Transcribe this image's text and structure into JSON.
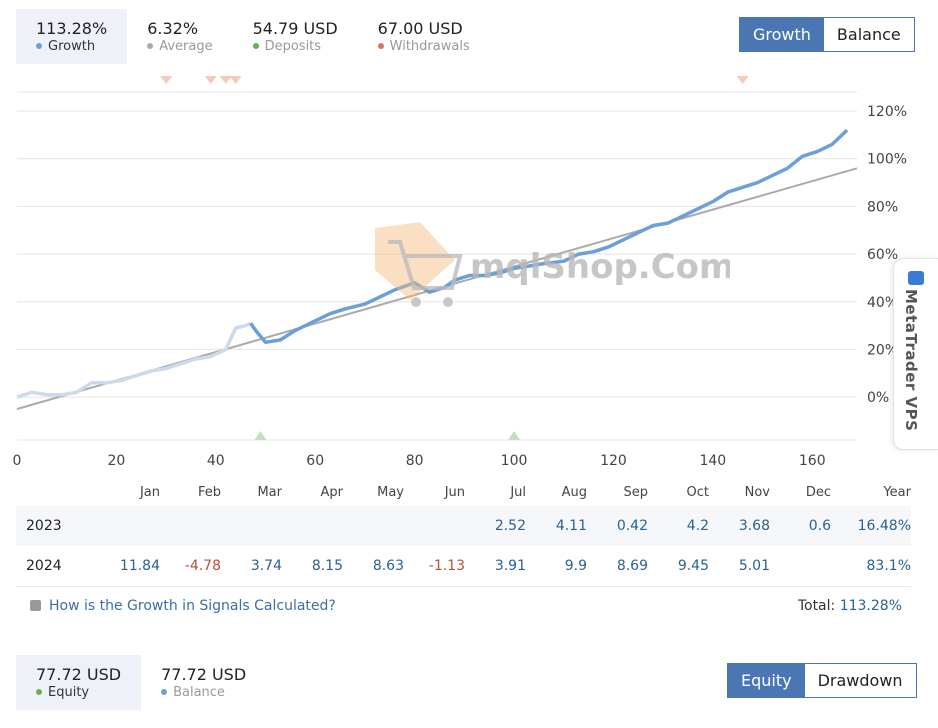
{
  "stats": [
    {
      "value": "113.28%",
      "label": "Growth",
      "color": "#6a9fd8",
      "active": true
    },
    {
      "value": "6.32%",
      "label": "Average",
      "color": "#aaaaaa",
      "active": false
    },
    {
      "value": "54.79 USD",
      "label": "Deposits",
      "color": "#6aaf50",
      "active": false
    },
    {
      "value": "67.00 USD",
      "label": "Withdrawals",
      "color": "#d87560",
      "active": false
    }
  ],
  "toggle1": {
    "growth": "Growth",
    "balance": "Balance"
  },
  "chart_data": {
    "type": "line",
    "x_ticks": [
      0,
      20,
      40,
      60,
      80,
      100,
      120,
      140,
      160
    ],
    "y_ticks": [
      "0%",
      "20%",
      "40%",
      "60%",
      "80%",
      "100%",
      "120%"
    ],
    "xlim": [
      0,
      169
    ],
    "ylim": [
      -18,
      128
    ],
    "grid": true,
    "series": [
      {
        "color": "#6b9fd9",
        "x": [
          0,
          3,
          6,
          9,
          12,
          15,
          18,
          21,
          24,
          27,
          30,
          33,
          36,
          39,
          42,
          44,
          46,
          47,
          48,
          50,
          53,
          56,
          60,
          63,
          66,
          70,
          73,
          76,
          80,
          83,
          86,
          88,
          91,
          94,
          97,
          100,
          103,
          106,
          110,
          113,
          116,
          119,
          122,
          125,
          128,
          131,
          134,
          137,
          140,
          143,
          146,
          149,
          152,
          155,
          158,
          161,
          164,
          167
        ],
        "y": [
          0,
          2,
          1,
          1,
          2,
          6,
          6,
          7,
          9,
          11,
          12,
          14,
          16,
          17,
          20,
          29,
          30,
          31,
          28,
          23,
          24,
          28,
          32,
          35,
          37,
          39,
          42,
          45,
          48,
          44,
          46,
          49,
          51,
          51,
          52,
          54,
          55,
          56,
          57,
          60,
          61,
          63,
          66,
          69,
          72,
          73,
          76,
          79,
          82,
          86,
          88,
          90,
          93,
          96,
          101,
          103,
          106,
          112
        ]
      },
      {
        "color": "#aaaaaa",
        "x": [
          0,
          169
        ],
        "y": [
          -5,
          96
        ]
      }
    ],
    "markers_top": [
      30,
      39,
      42,
      44,
      146
    ],
    "markers_bottom": [
      49,
      100
    ]
  },
  "watermark": "mqlShop.Com",
  "vps_label": "MetaTrader VPS",
  "monthly": {
    "headers": [
      "",
      "Jan",
      "Feb",
      "Mar",
      "Apr",
      "May",
      "Jun",
      "Jul",
      "Aug",
      "Sep",
      "Oct",
      "Nov",
      "Dec",
      "Year"
    ],
    "rows": [
      {
        "year": "2023",
        "cells": [
          "",
          "",
          "",
          "",
          "",
          "",
          "2.52",
          "4.11",
          "0.42",
          "4.2",
          "3.68",
          "0.6"
        ],
        "total": "16.48%"
      },
      {
        "year": "2024",
        "cells": [
          "11.84",
          "-4.78",
          "3.74",
          "8.15",
          "8.63",
          "-1.13",
          "3.91",
          "9.9",
          "8.69",
          "9.45",
          "5.01",
          ""
        ],
        "total": "83.1%"
      }
    ]
  },
  "help_link": "How is the Growth in Signals Calculated?",
  "total_label": "Total:",
  "total_value": "113.28%",
  "stats2": [
    {
      "value": "77.72 USD",
      "label": "Equity",
      "color": "#6aaf50",
      "active": true
    },
    {
      "value": "77.72 USD",
      "label": "Balance",
      "color": "#6a9fd8",
      "active": false
    }
  ],
  "toggle2": {
    "equity": "Equity",
    "drawdown": "Drawdown"
  }
}
